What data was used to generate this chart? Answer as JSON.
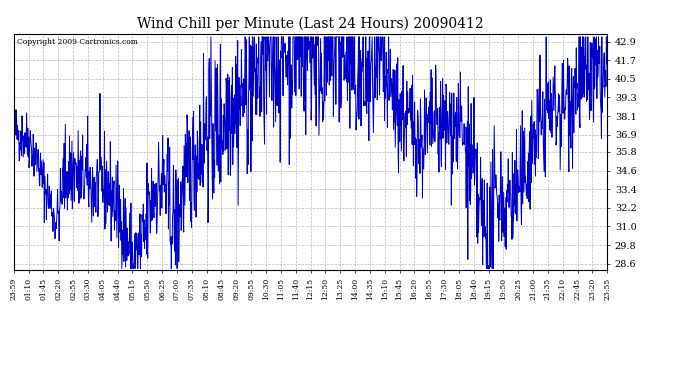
{
  "title": "Wind Chill per Minute (Last 24 Hours) 20090412",
  "copyright": "Copyright 2009 Cartronics.com",
  "line_color": "#0000cc",
  "bg_color": "#ffffff",
  "grid_color": "#bbbbbb",
  "yticks": [
    28.6,
    29.8,
    31.0,
    32.2,
    33.4,
    34.6,
    35.8,
    36.9,
    38.1,
    39.3,
    40.5,
    41.7,
    42.9
  ],
  "ymin": 28.2,
  "ymax": 43.4,
  "x_labels": [
    "23:59",
    "01:10",
    "01:45",
    "02:20",
    "02:55",
    "03:30",
    "04:05",
    "04:40",
    "05:15",
    "05:50",
    "06:25",
    "07:00",
    "07:35",
    "08:10",
    "08:45",
    "09:20",
    "09:55",
    "10:30",
    "11:05",
    "11:40",
    "12:15",
    "12:50",
    "13:25",
    "14:00",
    "14:35",
    "15:10",
    "15:45",
    "16:20",
    "16:55",
    "17:30",
    "18:05",
    "18:40",
    "19:15",
    "19:50",
    "20:25",
    "21:00",
    "21:35",
    "22:10",
    "22:45",
    "23:20",
    "23:55"
  ]
}
